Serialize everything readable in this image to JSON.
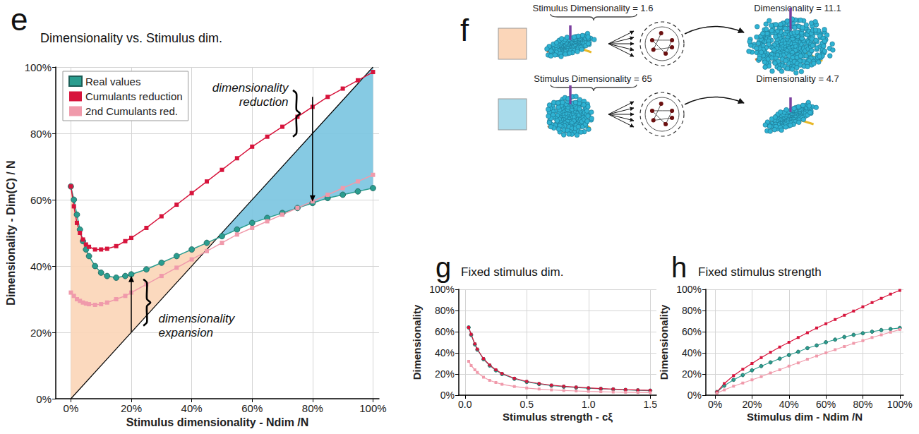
{
  "chart_data": [
    {
      "panel": "e",
      "type": "line",
      "title": "Dimensionality vs. Stimulus dim.",
      "xlabel": "Stimulus dimensionality - Ndim /N",
      "ylabel": "Dimensionality - Dim(C) / N",
      "x": [
        0,
        1,
        2,
        3,
        4,
        5,
        6,
        8,
        10,
        12,
        15,
        18,
        20,
        25,
        30,
        35,
        40,
        45,
        50,
        55,
        60,
        65,
        70,
        75,
        80,
        85,
        90,
        95,
        100
      ],
      "series": [
        {
          "name": "Real values",
          "color": "#2a9d8f",
          "marker": "circle",
          "line_style": "solid",
          "values": [
            64,
            60,
            55.5,
            51,
            47.5,
            45,
            43,
            40,
            38,
            37,
            36.5,
            37,
            37.5,
            39,
            41,
            43,
            45,
            47,
            49,
            51,
            53,
            54.5,
            56,
            57.5,
            59,
            60.5,
            61.5,
            62.5,
            63.5
          ]
        },
        {
          "name": "Cumulants reduction",
          "color": "#d7143c",
          "marker": "square",
          "line_style": "solid",
          "values": [
            64,
            58,
            53,
            50,
            48,
            46.5,
            45.8,
            45,
            45,
            45.2,
            46,
            47.5,
            48.5,
            51.5,
            55,
            58.5,
            62,
            65.5,
            69,
            72.5,
            76,
            79,
            82,
            85,
            88,
            91,
            93.5,
            96,
            98.5
          ]
        },
        {
          "name": "2nd Cumulants red.",
          "color": "#f09aab",
          "marker": "square",
          "line_style": "solid",
          "values": [
            32,
            31,
            30,
            29.5,
            29,
            28.7,
            28.5,
            28.3,
            28.5,
            29,
            30,
            31,
            32,
            34.5,
            37,
            39.5,
            42,
            44.5,
            47,
            49.5,
            51.5,
            53.5,
            55.5,
            57.5,
            59.5,
            61.5,
            63.5,
            65.5,
            67.5
          ]
        }
      ],
      "reference_line": {
        "color": "#000000",
        "x": [
          0,
          100
        ],
        "values": [
          0,
          100
        ]
      },
      "annotations": [
        {
          "text": "dimensionality expansion",
          "color": "#fbd6b9"
        },
        {
          "text": "dimensionality reduction",
          "color": "#7cc5e1"
        }
      ],
      "xlim": [
        -5,
        102
      ],
      "ylim": [
        0,
        100
      ],
      "xticks": [
        {
          "value": 0,
          "label": "0%"
        },
        {
          "value": 20,
          "label": "20%"
        },
        {
          "value": 40,
          "label": "40%"
        },
        {
          "value": 60,
          "label": "60%"
        },
        {
          "value": 80,
          "label": "80%"
        },
        {
          "value": 100,
          "label": "100%"
        }
      ],
      "yticks": [
        {
          "value": 0,
          "label": "0%"
        },
        {
          "value": 20,
          "label": "20%"
        },
        {
          "value": 40,
          "label": "40%"
        },
        {
          "value": 60,
          "label": "60%"
        },
        {
          "value": 80,
          "label": "80%"
        },
        {
          "value": 100,
          "label": "100%"
        }
      ],
      "grid": true,
      "legend": "upper left"
    },
    {
      "panel": "g",
      "type": "line",
      "title": "Fixed stimulus dim.",
      "xlabel": "Stimulus strength - cξ",
      "ylabel": "Dimensionality",
      "x": [
        0.03,
        0.05,
        0.08,
        0.1,
        0.15,
        0.2,
        0.25,
        0.3,
        0.4,
        0.5,
        0.6,
        0.7,
        0.8,
        0.9,
        1.0,
        1.1,
        1.2,
        1.3,
        1.4,
        1.5
      ],
      "series": [
        {
          "name": "Real values",
          "color": "#2a9d8f",
          "marker": "circle",
          "line_style": "solid",
          "values": [
            64,
            57,
            48,
            43,
            34,
            28,
            23.5,
            20,
            15.5,
            12.5,
            10.5,
            9,
            8,
            7.2,
            6.5,
            6,
            5.5,
            5,
            4.6,
            4.3
          ]
        },
        {
          "name": "Cumulants reduction",
          "color": "#d7143c",
          "marker": "square",
          "line_style": "solid",
          "values": [
            64,
            57.5,
            48.5,
            43.5,
            34.5,
            28.5,
            24,
            20.5,
            16,
            13,
            11,
            9.5,
            8.4,
            7.6,
            6.9,
            6.3,
            5.8,
            5.3,
            4.9,
            4.6
          ]
        },
        {
          "name": "2nd Cumulants red.",
          "color": "#f09aab",
          "marker": "square",
          "line_style": "solid",
          "values": [
            32,
            28,
            24,
            21.5,
            17,
            14,
            12,
            10.3,
            8.2,
            6.8,
            5.8,
            5,
            4.4,
            4,
            3.6,
            3.3,
            3,
            2.8,
            2.6,
            2.4
          ]
        }
      ],
      "xlim": [
        -0.05,
        1.55
      ],
      "ylim": [
        0,
        100
      ],
      "xticks": [
        {
          "value": 0,
          "label": "0.0"
        },
        {
          "value": 0.5,
          "label": "0.5"
        },
        {
          "value": 1,
          "label": "1.0"
        },
        {
          "value": 1.5,
          "label": "1.5"
        }
      ],
      "yticks": [
        {
          "value": 0,
          "label": "0%"
        },
        {
          "value": 20,
          "label": "20%"
        },
        {
          "value": 40,
          "label": "40%"
        },
        {
          "value": 60,
          "label": "60%"
        },
        {
          "value": 80,
          "label": "80%"
        },
        {
          "value": 100,
          "label": "100%"
        }
      ],
      "grid": true
    },
    {
      "panel": "h",
      "type": "line",
      "title": "Fixed stimulus strength",
      "xlabel": "Stimulus dim - Ndim /N",
      "ylabel": "Dimensionality",
      "x": [
        1,
        5,
        10,
        15,
        20,
        25,
        30,
        35,
        40,
        45,
        50,
        55,
        60,
        65,
        70,
        75,
        80,
        85,
        90,
        95,
        100
      ],
      "series": [
        {
          "name": "Real values",
          "color": "#2a9d8f",
          "marker": "circle",
          "line_style": "solid",
          "values": [
            3,
            9,
            14.5,
            19,
            23.5,
            27.5,
            31,
            34.5,
            38,
            41,
            44.5,
            47,
            50,
            52.5,
            55,
            57,
            58.5,
            60,
            61.5,
            62.5,
            63.5
          ]
        },
        {
          "name": "Cumulants reduction",
          "color": "#d7143c",
          "marker": "square",
          "line_style": "solid",
          "values": [
            3,
            11,
            18.5,
            24.5,
            30,
            35.5,
            40.5,
            45.5,
            50,
            54.5,
            59,
            63.5,
            67.5,
            71.5,
            75.5,
            79.5,
            83.5,
            87.5,
            91.5,
            95.5,
            99
          ]
        },
        {
          "name": "2nd Cumulants red.",
          "color": "#f09aab",
          "marker": "square",
          "line_style": "solid",
          "values": [
            2,
            5,
            8.5,
            11.5,
            14.5,
            17.5,
            21,
            24,
            27.5,
            30.5,
            34,
            37,
            40,
            43,
            46,
            49,
            51.5,
            54.5,
            57,
            59.5,
            62
          ]
        }
      ],
      "xlim": [
        -5,
        102
      ],
      "ylim": [
        0,
        100
      ],
      "xticks": [
        {
          "value": 0,
          "label": "0%"
        },
        {
          "value": 20,
          "label": "20%"
        },
        {
          "value": 40,
          "label": "40%"
        },
        {
          "value": 60,
          "label": "60%"
        },
        {
          "value": 80,
          "label": "80%"
        },
        {
          "value": 100,
          "label": "100%"
        }
      ],
      "yticks": [
        {
          "value": 0,
          "label": "0%"
        },
        {
          "value": 20,
          "label": "20%"
        },
        {
          "value": 40,
          "label": "40%"
        },
        {
          "value": 60,
          "label": "60%"
        },
        {
          "value": 80,
          "label": "80%"
        },
        {
          "value": 100,
          "label": "100%"
        }
      ],
      "grid": true
    }
  ],
  "diagram": {
    "panel": "f",
    "rows": [
      {
        "color": "#fbd6b9",
        "input_label": "Stimulus Dimensionality = 1.6",
        "output_label": "Dimensionality = 11.1"
      },
      {
        "color": "#a9dbeb",
        "input_label": "Stimulus Dimensionality = 65",
        "output_label": "Dimensionality = 4.7"
      }
    ]
  }
}
